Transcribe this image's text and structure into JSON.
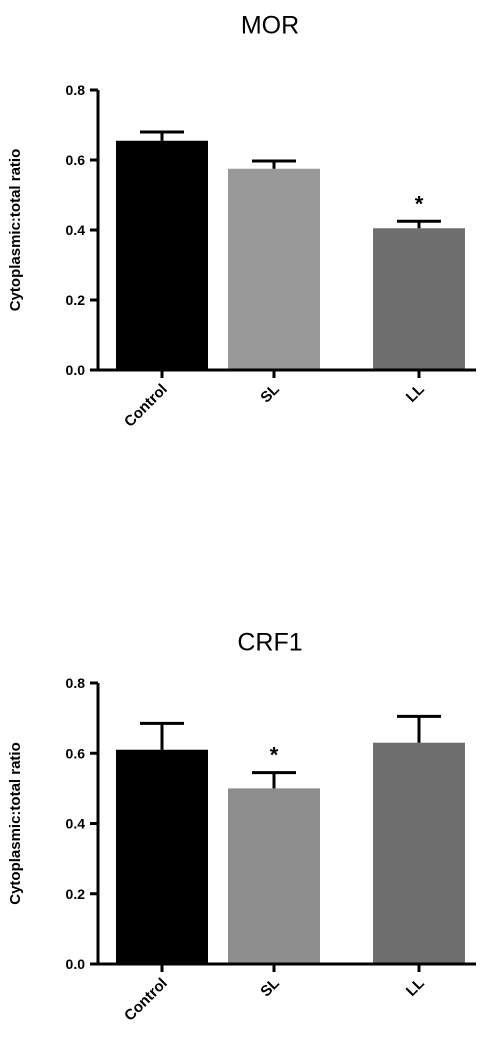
{
  "chart_data": [
    {
      "type": "bar",
      "title": "MOR",
      "ylabel": "Cytoplasmic:total ratio",
      "xlabel": "",
      "ylim": [
        0,
        0.8
      ],
      "yticks": [
        "0.0",
        "0.2",
        "0.4",
        "0.6",
        "0.8"
      ],
      "categories": [
        "Control",
        "SL",
        "LL"
      ],
      "values": [
        0.655,
        0.575,
        0.405
      ],
      "errors": [
        0.025,
        0.022,
        0.02
      ],
      "bar_colors": [
        "#000000",
        "#999999",
        "#6e6e6e"
      ],
      "annotations": [
        {
          "category": "LL",
          "text": "*"
        }
      ],
      "grid": false,
      "legend": "none"
    },
    {
      "type": "bar",
      "title": "CRF1",
      "ylabel": "Cytoplasmic:total ratio",
      "xlabel": "",
      "ylim": [
        0,
        0.8
      ],
      "yticks": [
        "0.0",
        "0.2",
        "0.4",
        "0.6",
        "0.8"
      ],
      "categories": [
        "Control",
        "SL",
        "LL"
      ],
      "values": [
        0.61,
        0.5,
        0.63
      ],
      "errors": [
        0.075,
        0.045,
        0.075
      ],
      "bar_colors": [
        "#000000",
        "#8e8e8e",
        "#6e6e6e"
      ],
      "annotations": [
        {
          "category": "SL",
          "text": "*"
        }
      ],
      "grid": false,
      "legend": "none"
    }
  ]
}
